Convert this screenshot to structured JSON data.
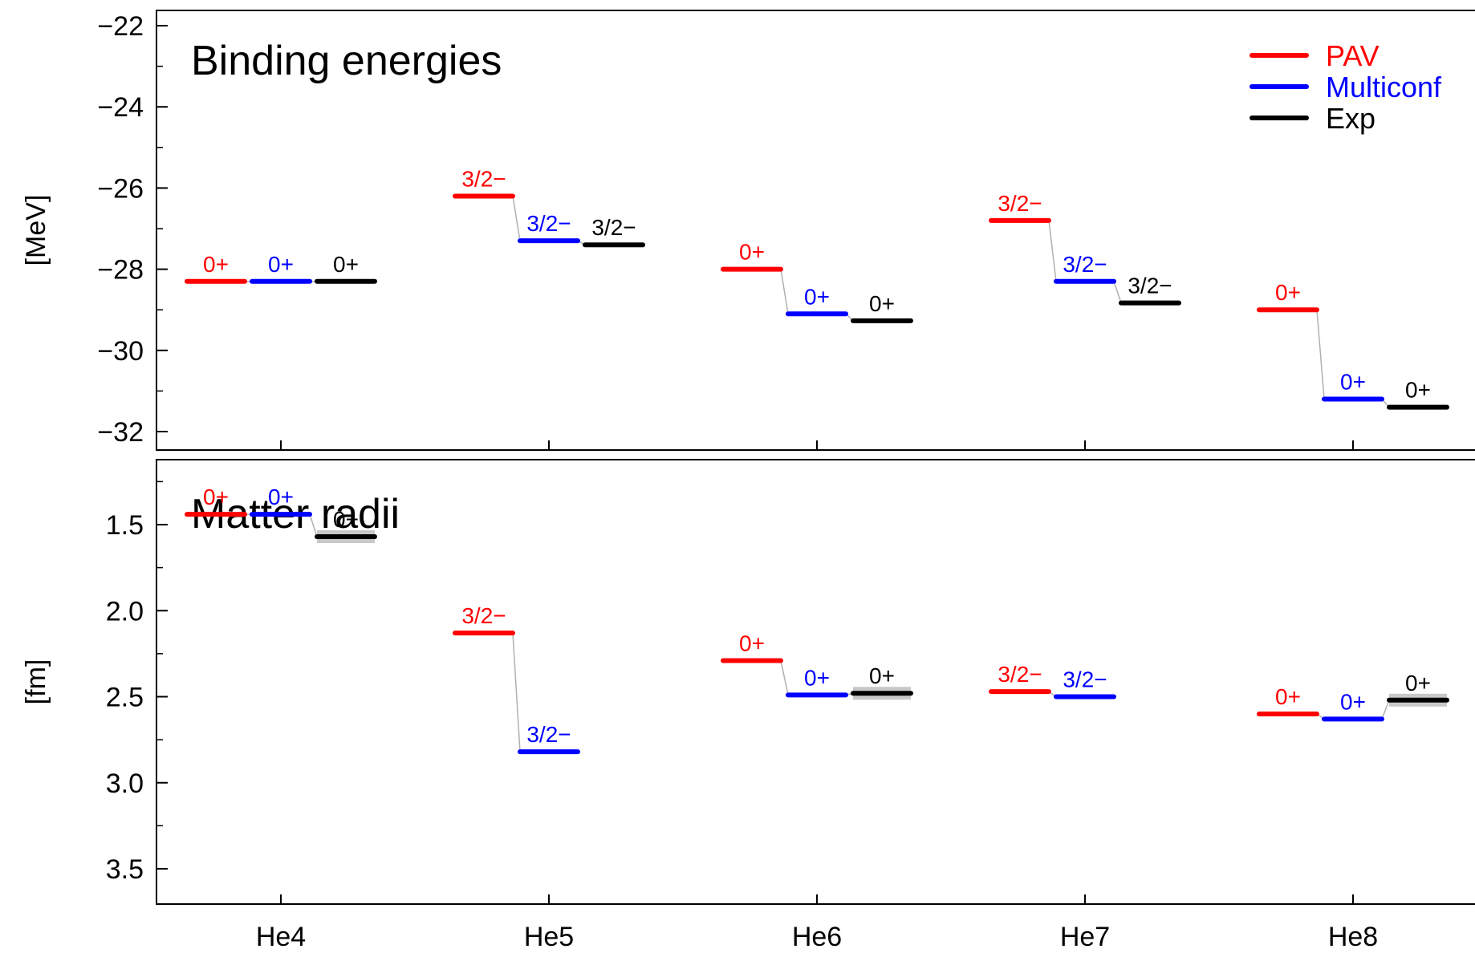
{
  "chart_data": [
    {
      "type": "level-scheme",
      "title": "Binding energies",
      "ylabel": "[MeV]",
      "ylim": [
        -32.4,
        -21.6
      ],
      "yticks": [
        -22,
        -24,
        -26,
        -28,
        -30,
        -32
      ],
      "ytick_labels": [
        "−22",
        "−24",
        "−26",
        "−28",
        "−30",
        "−32"
      ],
      "categories": [
        "He4",
        "He5",
        "He6",
        "He7",
        "He8"
      ],
      "series": [
        {
          "name": "PAV",
          "color": "#ff0000",
          "values": [
            -28.3,
            -26.2,
            -28.0,
            -26.8,
            -29.0
          ],
          "labels": [
            "0+",
            "3/2−",
            "0+",
            "3/2−",
            "0+"
          ]
        },
        {
          "name": "Multiconf",
          "color": "#0000ff",
          "values": [
            -28.3,
            -27.3,
            -29.1,
            -28.3,
            -31.2
          ],
          "labels": [
            "0+",
            "3/2−",
            "0+",
            "3/2−",
            "0+"
          ]
        },
        {
          "name": "Exp",
          "color": "#000000",
          "values": [
            -28.3,
            -27.4,
            -29.27,
            -28.83,
            -31.4
          ],
          "labels": [
            "0+",
            "3/2−",
            "0+",
            "3/2−",
            "0+"
          ]
        }
      ],
      "legend": {
        "position": "top-right",
        "entries": [
          "PAV",
          "Multiconf",
          "Exp"
        ]
      }
    },
    {
      "type": "level-scheme",
      "title": "Matter radii",
      "ylabel": "[fm]",
      "ylim": [
        1.3,
        3.85
      ],
      "yticks": [
        1.5,
        2.0,
        2.5,
        3.0,
        3.5
      ],
      "ytick_labels": [
        "1.5",
        "2.0",
        "2.5",
        "3.0",
        "3.5"
      ],
      "categories": [
        "He4",
        "He5",
        "He6",
        "He7",
        "He8"
      ],
      "series": [
        {
          "name": "PAV",
          "color": "#ff0000",
          "values": [
            1.44,
            2.13,
            2.29,
            2.47,
            2.6
          ],
          "labels": [
            "0+",
            "3/2−",
            "0+",
            "3/2−",
            "0+"
          ]
        },
        {
          "name": "Multiconf",
          "color": "#0000ff",
          "values": [
            1.44,
            2.82,
            2.49,
            2.5,
            2.63
          ],
          "labels": [
            "0+",
            "3/2−",
            "0+",
            "3/2−",
            "0+"
          ]
        },
        {
          "name": "Exp",
          "color": "#000000",
          "values": [
            1.57,
            null,
            2.48,
            null,
            2.52
          ],
          "labels": [
            "0+",
            "",
            "0+",
            "",
            "0+"
          ]
        }
      ]
    }
  ]
}
